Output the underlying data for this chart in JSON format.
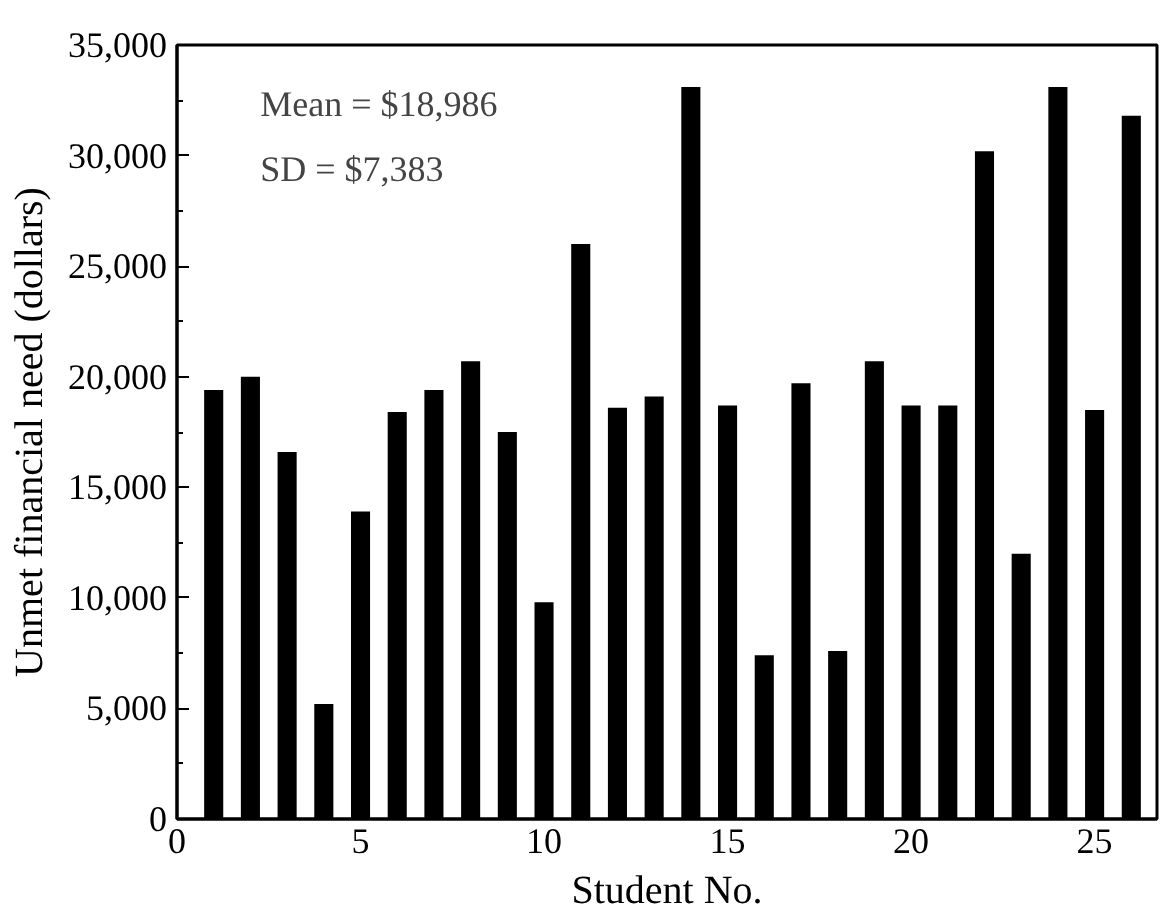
{
  "chart_data": {
    "type": "bar",
    "xlabel": "Student No.",
    "ylabel": "Unmet financial need (dollars)",
    "x": [
      1,
      2,
      3,
      4,
      5,
      6,
      7,
      8,
      9,
      10,
      11,
      12,
      13,
      14,
      15,
      16,
      17,
      18,
      19,
      20,
      21,
      22,
      23,
      24,
      25,
      26
    ],
    "values": [
      19400,
      20000,
      16600,
      5200,
      13900,
      18400,
      19400,
      20700,
      17500,
      9800,
      26000,
      18600,
      19100,
      33100,
      18700,
      7400,
      19700,
      7600,
      20700,
      18700,
      18700,
      30200,
      12000,
      33100,
      18500,
      31800
    ],
    "color": "#000000",
    "xlim": [
      0,
      26.7
    ],
    "xticks": [
      0,
      5,
      10,
      15,
      20,
      25
    ],
    "ylim": [
      0,
      35000
    ],
    "yticks": [
      {
        "value": 0,
        "label": "0"
      },
      {
        "value": 5000,
        "label": "5,000"
      },
      {
        "value": 10000,
        "label": "10,000"
      },
      {
        "value": 15000,
        "label": "15,000"
      },
      {
        "value": 20000,
        "label": "20,000"
      },
      {
        "value": 25000,
        "label": "25,000"
      },
      {
        "value": 30000,
        "label": "30,000"
      },
      {
        "value": 35000,
        "label": "35,000"
      }
    ],
    "grid": false,
    "annotations": [
      "Mean = $18,986",
      "SD = $7,383"
    ]
  }
}
